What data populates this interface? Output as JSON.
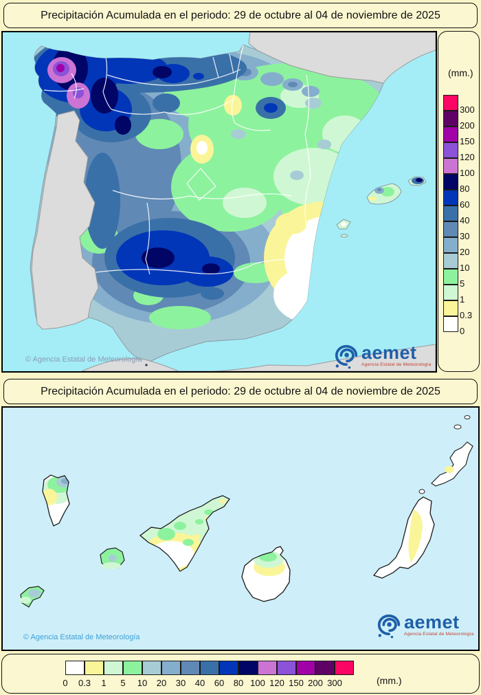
{
  "peninsula_map": {
    "title": "Precipitación Acumulada en el periodo: 29 de octubre al 04 de noviembre de 2025",
    "copyright": "© Agencia Estatal de Meteorología",
    "logo_text": "aemet",
    "logo_tagline": "Agencia Estatal de Meteorología"
  },
  "canary_map": {
    "title": "Precipitación Acumulada en el periodo: 29 de octubre al 04 de noviembre de 2025",
    "copyright": "© Agencia Estatal de Meteorología",
    "logo_text": "aemet",
    "logo_tagline": "Agencia Estatal de Meteorología"
  },
  "legend": {
    "unit_label": "(mm.)",
    "thresholds": [
      "0",
      "0.3",
      "1",
      "5",
      "10",
      "20",
      "30",
      "40",
      "60",
      "80",
      "100",
      "120",
      "150",
      "200",
      "300"
    ],
    "colors_low_to_high": [
      "#FFFFFF",
      "#FAF598",
      "#D0F7D4",
      "#8DF29E",
      "#A8CCD6",
      "#85AECC",
      "#6089B5",
      "#3A70A8",
      "#0236B8",
      "#000566",
      "#CC74D4",
      "#8C52D8",
      "#A002A8",
      "#5E0266",
      "#FA0564"
    ]
  },
  "colors": {
    "sea_peninsula": "#A4EDF7",
    "sea_canary": "#CEEFF9",
    "neighbor_land": "#DCDCDC",
    "page_background": "#FAF5C8",
    "logo_blue": "#1F5FA8",
    "copyright_gray": "#8A9BB5",
    "copyright_blue": "#3E9FD8"
  }
}
